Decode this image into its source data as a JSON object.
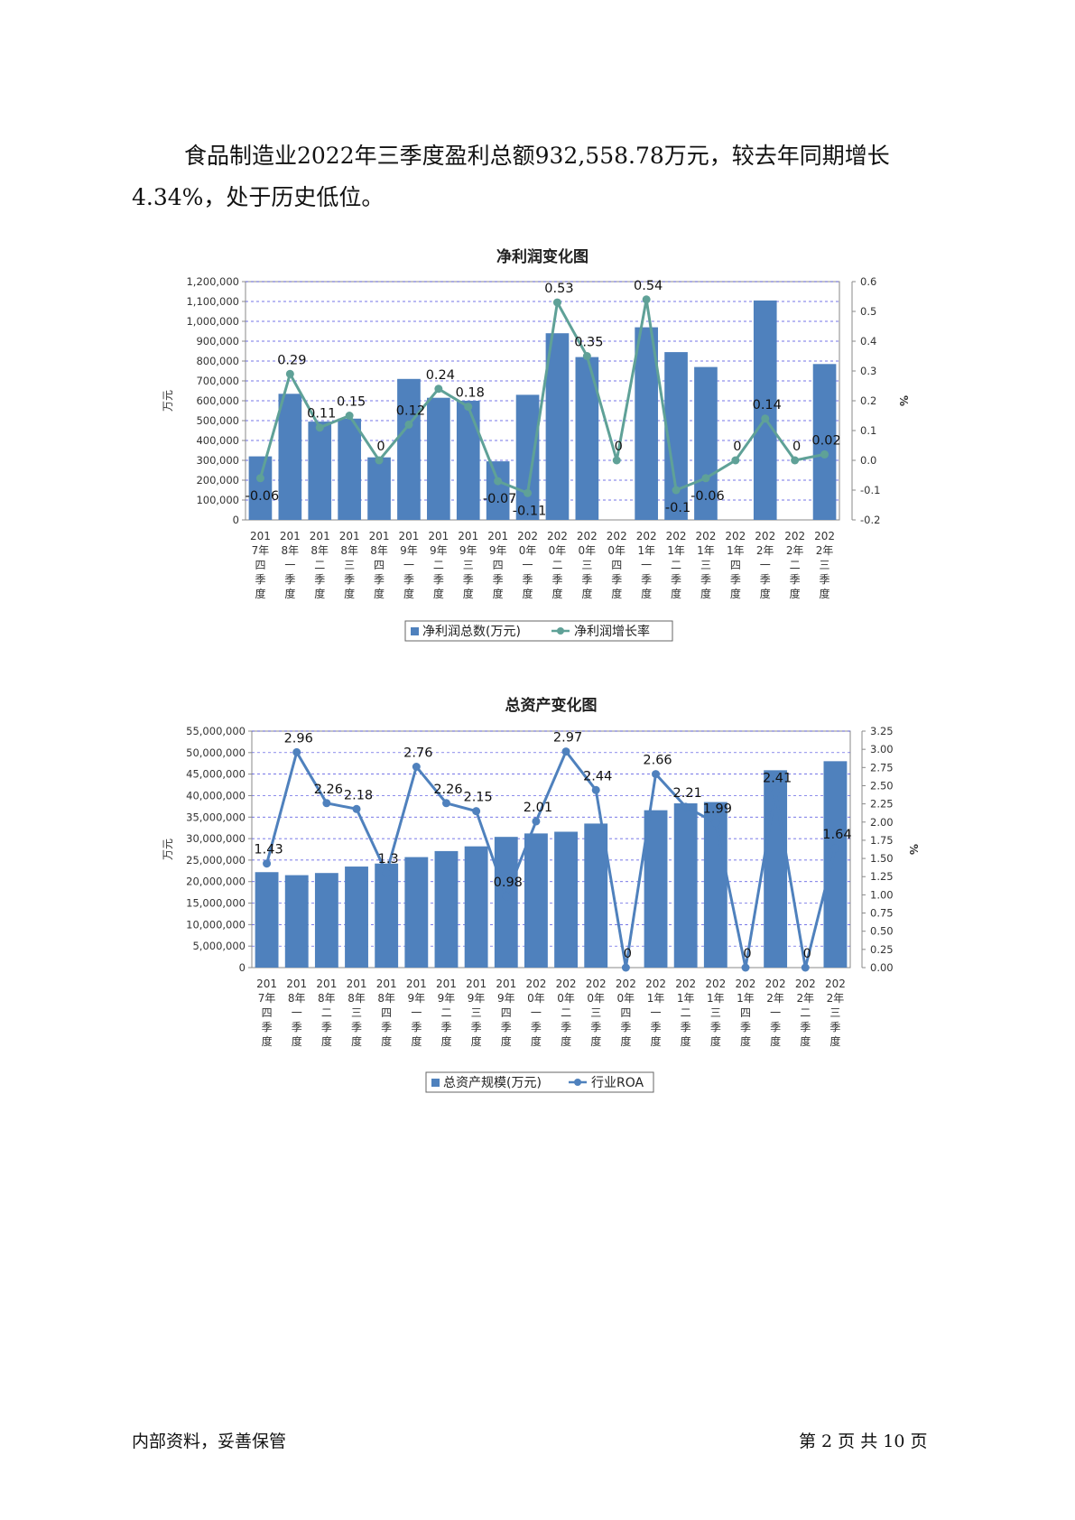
{
  "paragraph": {
    "line1": "食品制造业2022年三季度盈利总额932,558.78万元，较去年同期增长",
    "line2": "4.34%，处于历史低位。"
  },
  "footer": {
    "left": "内部资料，妥善保管",
    "right": "第 2 页  共 10 页"
  },
  "chart_data": [
    {
      "type": "bar",
      "title": "净利润变化图",
      "ylabel": "万元",
      "y2label": "%",
      "categories": [
        [
          "201",
          "7年",
          "四",
          "季",
          "度"
        ],
        [
          "201",
          "8年",
          "一",
          "季",
          "度"
        ],
        [
          "201",
          "8年",
          "二",
          "季",
          "度"
        ],
        [
          "201",
          "8年",
          "三",
          "季",
          "度"
        ],
        [
          "201",
          "8年",
          "四",
          "季",
          "度"
        ],
        [
          "201",
          "9年",
          "一",
          "季",
          "度"
        ],
        [
          "201",
          "9年",
          "二",
          "季",
          "度"
        ],
        [
          "201",
          "9年",
          "三",
          "季",
          "度"
        ],
        [
          "201",
          "9年",
          "四",
          "季",
          "度"
        ],
        [
          "202",
          "0年",
          "一",
          "季",
          "度"
        ],
        [
          "202",
          "0年",
          "二",
          "季",
          "度"
        ],
        [
          "202",
          "0年",
          "三",
          "季",
          "度"
        ],
        [
          "202",
          "0年",
          "四",
          "季",
          "度"
        ],
        [
          "202",
          "1年",
          "一",
          "季",
          "度"
        ],
        [
          "202",
          "1年",
          "二",
          "季",
          "度"
        ],
        [
          "202",
          "1年",
          "三",
          "季",
          "度"
        ],
        [
          "202",
          "1年",
          "四",
          "季",
          "度"
        ],
        [
          "202",
          "2年",
          "一",
          "季",
          "度"
        ],
        [
          "202",
          "2年",
          "二",
          "季",
          "度"
        ],
        [
          "202",
          "2年",
          "三",
          "季",
          "度"
        ]
      ],
      "series": [
        {
          "name": "净利润总数(万元)",
          "kind": "bar",
          "axis": "left",
          "values": [
            320000,
            635000,
            495000,
            510000,
            315000,
            710000,
            615000,
            600000,
            295000,
            630000,
            940000,
            820000,
            0,
            970000,
            845000,
            770000,
            0,
            1105000,
            0,
            785000
          ]
        },
        {
          "name": "净利润增长率",
          "kind": "line",
          "axis": "right",
          "values": [
            -0.06,
            0.29,
            0.11,
            0.15,
            0,
            0.12,
            0.24,
            0.18,
            -0.07,
            -0.11,
            0.53,
            0.35,
            0,
            0.54,
            -0.1,
            -0.06,
            0,
            0.14,
            0,
            0.02
          ]
        }
      ],
      "ylim": [
        0,
        1200000
      ],
      "yticks": [
        "0",
        "100,000",
        "200,000",
        "300,000",
        "400,000",
        "500,000",
        "600,000",
        "700,000",
        "800,000",
        "900,000",
        "1,000,000",
        "1,100,000",
        "1,200,000"
      ],
      "y2lim": [
        -0.2,
        0.6
      ],
      "y2ticks": [
        "-0.2",
        "-0.1",
        "0.0",
        "0.1",
        "0.2",
        "0.3",
        "0.4",
        "0.5",
        "0.6"
      ],
      "point_labels": [
        "-0.06",
        "0.29",
        "0.11",
        "0.15",
        "0",
        "0.12",
        "0.24",
        "0.18",
        "-0.07",
        "-0.11",
        "0.53",
        "0.35",
        "0",
        "0.54",
        "-0.1",
        "-0.06",
        "0",
        "0.14",
        "0",
        "0.02"
      ],
      "colors": {
        "bar": "#4f81bd",
        "line": "#5fa197"
      },
      "grid": true,
      "legend": "bottom"
    },
    {
      "type": "bar",
      "title": "总资产变化图",
      "ylabel": "万元",
      "y2label": "%",
      "categories": [
        [
          "201",
          "7年",
          "四",
          "季",
          "度"
        ],
        [
          "201",
          "8年",
          "一",
          "季",
          "度"
        ],
        [
          "201",
          "8年",
          "二",
          "季",
          "度"
        ],
        [
          "201",
          "8年",
          "三",
          "季",
          "度"
        ],
        [
          "201",
          "8年",
          "四",
          "季",
          "度"
        ],
        [
          "201",
          "9年",
          "一",
          "季",
          "度"
        ],
        [
          "201",
          "9年",
          "二",
          "季",
          "度"
        ],
        [
          "201",
          "9年",
          "三",
          "季",
          "度"
        ],
        [
          "201",
          "9年",
          "四",
          "季",
          "度"
        ],
        [
          "202",
          "0年",
          "一",
          "季",
          "度"
        ],
        [
          "202",
          "0年",
          "二",
          "季",
          "度"
        ],
        [
          "202",
          "0年",
          "三",
          "季",
          "度"
        ],
        [
          "202",
          "0年",
          "四",
          "季",
          "度"
        ],
        [
          "202",
          "1年",
          "一",
          "季",
          "度"
        ],
        [
          "202",
          "1年",
          "二",
          "季",
          "度"
        ],
        [
          "202",
          "1年",
          "三",
          "季",
          "度"
        ],
        [
          "202",
          "1年",
          "四",
          "季",
          "度"
        ],
        [
          "202",
          "2年",
          "一",
          "季",
          "度"
        ],
        [
          "202",
          "2年",
          "二",
          "季",
          "度"
        ],
        [
          "202",
          "2年",
          "三",
          "季",
          "度"
        ]
      ],
      "series": [
        {
          "name": "总资产规模(万元)",
          "kind": "bar",
          "axis": "left",
          "values": [
            22200000,
            21500000,
            22000000,
            23500000,
            24200000,
            25700000,
            27100000,
            28200000,
            30400000,
            31200000,
            31600000,
            33500000,
            0,
            36600000,
            38200000,
            38500000,
            0,
            45900000,
            0,
            48000000
          ]
        },
        {
          "name": "行业ROA",
          "kind": "line",
          "axis": "right",
          "values": [
            1.43,
            2.96,
            2.26,
            2.18,
            1.3,
            2.76,
            2.26,
            2.15,
            0.98,
            2.01,
            2.97,
            2.44,
            0,
            2.66,
            2.21,
            1.99,
            0,
            2.41,
            0,
            1.64
          ]
        }
      ],
      "ylim": [
        0,
        55000000
      ],
      "yticks": [
        "0",
        "5,000,000",
        "10,000,000",
        "15,000,000",
        "20,000,000",
        "25,000,000",
        "30,000,000",
        "35,000,000",
        "40,000,000",
        "45,000,000",
        "50,000,000",
        "55,000,000"
      ],
      "y2lim": [
        0,
        3.25
      ],
      "y2ticks": [
        "0.00",
        "0.25",
        "0.50",
        "0.75",
        "1.00",
        "1.25",
        "1.50",
        "1.75",
        "2.00",
        "2.25",
        "2.50",
        "2.75",
        "3.00",
        "3.25"
      ],
      "point_labels": [
        "1.43",
        "2.96",
        "2.26",
        "2.18",
        "1.3",
        "2.76",
        "2.26",
        "2.15",
        "0.98",
        "2.01",
        "2.97",
        "2.44",
        "0",
        "2.66",
        "2.21",
        "1.99",
        "0",
        "2.41",
        "0",
        "1.64"
      ],
      "colors": {
        "bar": "#4f81bd",
        "line": "#4f81bd"
      },
      "grid": true,
      "legend": "bottom"
    }
  ]
}
